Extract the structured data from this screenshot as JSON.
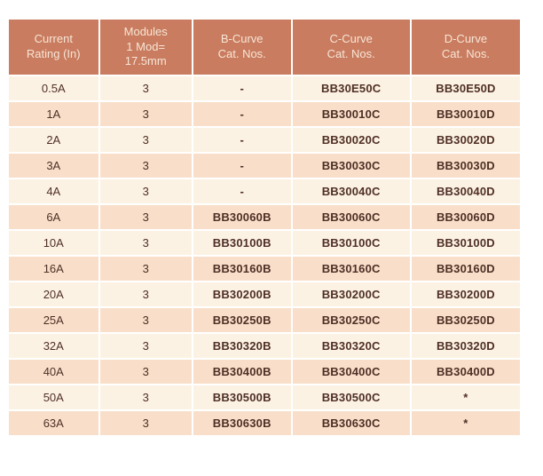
{
  "colors": {
    "header_bg": "#c97c5f",
    "header_text": "#f7e5d6",
    "row_light": "#fcf2e3",
    "row_dark": "#f9dfc9",
    "cell_text": "#4f2f26",
    "page_bg": "#ffffff"
  },
  "table": {
    "columns": [
      {
        "label": "Current\nRating (In)"
      },
      {
        "label": "Modules\n1 Mod=\n17.5mm"
      },
      {
        "label": "B-Curve\nCat. Nos."
      },
      {
        "label": "C-Curve\nCat. Nos."
      },
      {
        "label": "D-Curve\nCat. Nos."
      }
    ],
    "rows": [
      [
        "0.5A",
        "3",
        "-",
        "BB30E50C",
        "BB30E50D"
      ],
      [
        "1A",
        "3",
        "-",
        "BB30010C",
        "BB30010D"
      ],
      [
        "2A",
        "3",
        "-",
        "BB30020C",
        "BB30020D"
      ],
      [
        "3A",
        "3",
        "-",
        "BB30030C",
        "BB30030D"
      ],
      [
        "4A",
        "3",
        "-",
        "BB30040C",
        "BB30040D"
      ],
      [
        "6A",
        "3",
        "BB30060B",
        "BB30060C",
        "BB30060D"
      ],
      [
        "10A",
        "3",
        "BB30100B",
        "BB30100C",
        "BB30100D"
      ],
      [
        "16A",
        "3",
        "BB30160B",
        "BB30160C",
        "BB30160D"
      ],
      [
        "20A",
        "3",
        "BB30200B",
        "BB30200C",
        "BB30200D"
      ],
      [
        "25A",
        "3",
        "BB30250B",
        "BB30250C",
        "BB30250D"
      ],
      [
        "32A",
        "3",
        "BB30320B",
        "BB30320C",
        "BB30320D"
      ],
      [
        "40A",
        "3",
        "BB30400B",
        "BB30400C",
        "BB30400D"
      ],
      [
        "50A",
        "3",
        "BB30500B",
        "BB30500C",
        "*"
      ],
      [
        "63A",
        "3",
        "BB30630B",
        "BB30630C",
        "*"
      ]
    ]
  }
}
